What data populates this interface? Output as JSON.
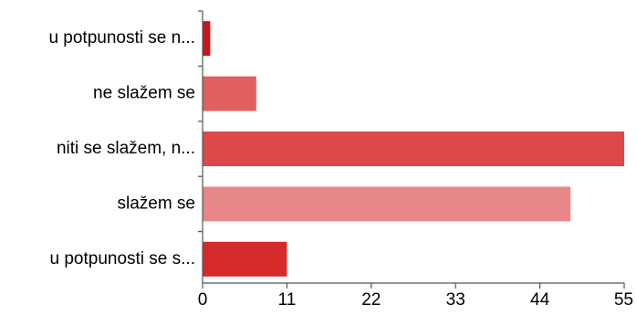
{
  "chart_data": {
    "type": "bar",
    "orientation": "horizontal",
    "categories": [
      "u potpunosti se n...",
      "ne slažem se",
      "niti se slažem, n...",
      "slažem se",
      "u potpunosti se s..."
    ],
    "values": [
      1,
      7,
      55,
      48,
      11
    ],
    "bar_colors": [
      "#c8161d",
      "#e06060",
      "#dd4848",
      "#e88888",
      "#d42a2a"
    ],
    "axis_color": "#555555",
    "xlim": [
      0,
      55
    ],
    "xticks": [
      0,
      11,
      22,
      33,
      44,
      55
    ],
    "grid": false,
    "title": "",
    "xlabel": "",
    "ylabel": ""
  }
}
